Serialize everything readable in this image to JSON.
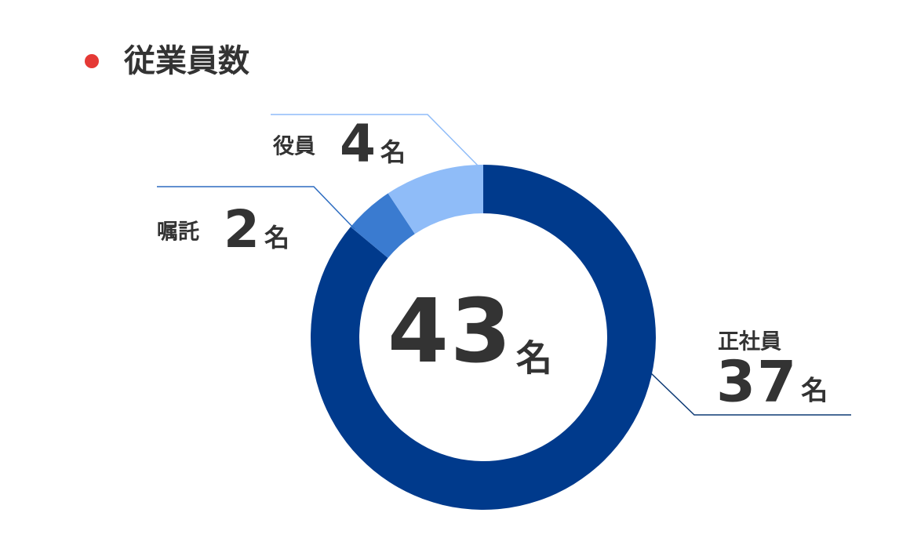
{
  "chart_data": {
    "type": "donut",
    "title": "従業員数",
    "categories": [
      "正社員",
      "嘱託",
      "役員"
    ],
    "values": [
      37,
      2,
      4
    ],
    "colors": [
      "#003a8c",
      "#3a7bd0",
      "#8fbcf8"
    ],
    "unit": "名",
    "total": 43
  }
}
